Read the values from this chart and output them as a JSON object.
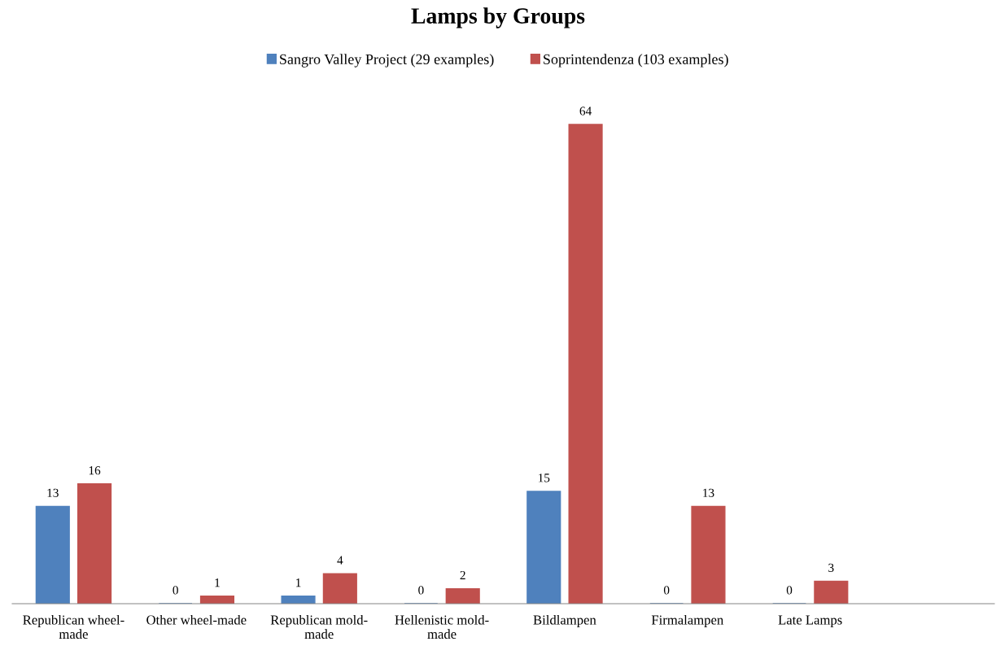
{
  "chart_data": {
    "type": "bar",
    "title": "Lamps by Groups",
    "categories": [
      "Republican wheel-made",
      "Other wheel-made",
      "Republican mold-made",
      "Hellenistic mold-made",
      "Bildlampen",
      "Firmalampen",
      "Late Lamps",
      null
    ],
    "series": [
      {
        "name": "Sangro Valley Project (29 examples)",
        "color": "#4f81bd",
        "values": [
          13,
          0,
          1,
          0,
          15,
          0,
          0,
          null
        ]
      },
      {
        "name": "Soprintendenza (103 examples)",
        "color": "#c0504d",
        "values": [
          16,
          1,
          4,
          2,
          64,
          13,
          3,
          null
        ]
      }
    ],
    "data_labels": true,
    "legend": "top",
    "tick_labels": "x",
    "grid": false
  }
}
